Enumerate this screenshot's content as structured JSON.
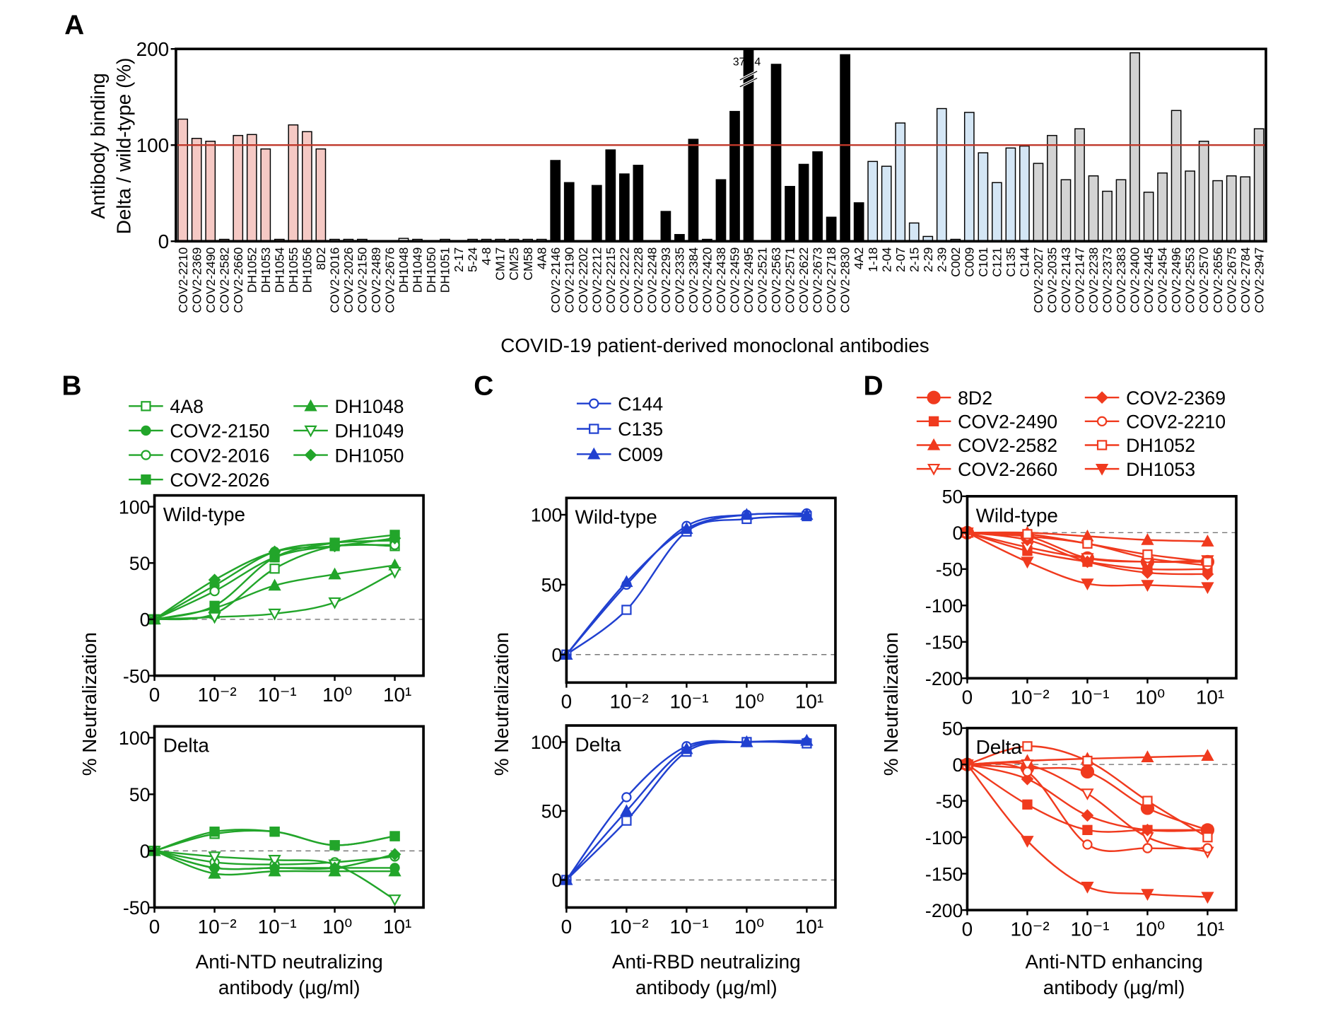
{
  "chart_data": [
    {
      "type": "bar",
      "panel": "A",
      "ylabel": [
        "Antibody binding",
        "Delta  / wild-type (%)"
      ],
      "xlabel": "COVID-19 patient-derived monoclonal antibodies",
      "ylim": [
        0,
        200
      ],
      "yticks": [
        0,
        100,
        200
      ],
      "reference_line": 100,
      "reference_color": "#c0392b",
      "groups": [
        {
          "fill": "#f5c9c4",
          "text_color": "#e8402a",
          "categories": [
            "COV2-2210",
            "COV2-2369",
            "COV2-2490",
            "COV2-2582",
            "COV2-2660",
            "DH1052",
            "DH1053",
            "DH1054",
            "DH1055",
            "DH1056",
            "8D2"
          ],
          "values": [
            127,
            107,
            104,
            2,
            110,
            111,
            96,
            2,
            121,
            114,
            96
          ]
        },
        {
          "fill": "#ffffff",
          "text_color": "#2aa52a",
          "categories": [
            "COV2-2016",
            "COV2-2026",
            "COV2-2150",
            "COV2-2489",
            "COV2-2676",
            "DH1048",
            "DH1049",
            "DH1050",
            "DH1051",
            "2-17",
            "5-24",
            "4-8",
            "CM17",
            "CM25",
            "CM58",
            "4A8"
          ],
          "values": [
            2,
            2,
            2,
            0,
            0,
            3,
            2,
            0,
            2,
            0,
            2,
            2,
            2,
            2,
            2,
            2
          ]
        },
        {
          "fill": "#000000",
          "text_color": "#000000",
          "categories": [
            "COV2-2146",
            "COV2-2190",
            "COV2-2202",
            "COV2-2212",
            "COV2-2215",
            "COV2-2222",
            "COV2-2228",
            "COV2-2248",
            "COV2-2293",
            "COV2-2335",
            "COV2-2384",
            "COV2-2420",
            "COV2-2438",
            "COV2-2459",
            "COV2-2495",
            "COV2-2521",
            "COV2-2563",
            "COV2-2571",
            "COV2-2622",
            "COV2-2673",
            "COV2-2718",
            "COV2-2830",
            "4A2"
          ],
          "values": [
            84,
            61,
            0,
            58,
            95,
            70,
            79,
            0,
            31,
            7,
            106,
            2,
            64,
            135,
            376.4,
            0,
            184,
            57,
            80,
            93,
            25,
            194,
            40
          ],
          "value_labels": [
            null,
            null,
            null,
            null,
            null,
            null,
            null,
            null,
            null,
            null,
            null,
            null,
            null,
            null,
            "376.4",
            null,
            null,
            null,
            null,
            null,
            null,
            null,
            null
          ]
        },
        {
          "fill": "#d4e6f5",
          "text_color": "#2a4fd0",
          "categories": [
            "1-18",
            "2-04",
            "2-07",
            "2-15",
            "2-29",
            "2-39",
            "C002",
            "C009",
            "C101",
            "C121",
            "C135",
            "C144"
          ],
          "values": [
            83,
            78,
            123,
            19,
            5,
            138,
            2,
            134,
            92,
            61,
            97,
            99
          ]
        },
        {
          "fill": "#d3d3d3",
          "text_color": "#000000",
          "categories": [
            "COV2-2027",
            "COV2-2035",
            "COV2-2143",
            "COV2-2147",
            "COV2-2238",
            "COV2-2373",
            "COV2-2383",
            "COV2-2400",
            "COV2-2445",
            "COV2-2454",
            "COV2-2496",
            "COV2-2553",
            "COV2-2570",
            "COV2-2656",
            "COV2-2675",
            "COV2-2784",
            "COV2-2947"
          ],
          "values": [
            81,
            110,
            64,
            117,
            68,
            52,
            64,
            196,
            51,
            71,
            136,
            73,
            104,
            63,
            68,
            67,
            117
          ]
        }
      ]
    },
    {
      "type": "line",
      "panel": "B",
      "ylabel": "% Neutralization",
      "xlabel": [
        "Anti-NTD neutralizing",
        "antibody (µg/ml)"
      ],
      "xscale": "log",
      "x": [
        0,
        0.01,
        0.1,
        1,
        10
      ],
      "xlim": [
        0,
        30
      ],
      "xticks": [
        0,
        {
          "value": 0.01,
          "label": "10⁻²"
        },
        {
          "value": 0.1,
          "label": "10⁻¹"
        },
        {
          "value": 1,
          "label": "10⁰"
        },
        {
          "value": 10,
          "label": "10¹"
        }
      ],
      "ylim": [
        -50,
        110
      ],
      "yticks": [
        -50,
        0,
        50,
        100
      ],
      "reference_line": 0,
      "subplots": [
        {
          "title": "Wild-type"
        },
        {
          "title": "Delta"
        }
      ],
      "series": [
        {
          "name": "4A8",
          "color": "#22a52a",
          "marker": "square-open",
          "values": [
            [
              0,
              5,
              45,
              65,
              65
            ],
            [
              0,
              15,
              17,
              5,
              13
            ]
          ]
        },
        {
          "name": "COV2-2150",
          "color": "#22a52a",
          "marker": "circle",
          "values": [
            [
              0,
              30,
              60,
              68,
              70
            ],
            [
              0,
              -15,
              -15,
              -15,
              -15
            ]
          ]
        },
        {
          "name": "COV2-2016",
          "color": "#22a52a",
          "marker": "circle-open",
          "values": [
            [
              0,
              25,
              55,
              65,
              66
            ],
            [
              0,
              -10,
              -12,
              -10,
              -5
            ]
          ]
        },
        {
          "name": "COV2-2026",
          "color": "#22a52a",
          "marker": "square",
          "values": [
            [
              0,
              12,
              55,
              68,
              75
            ],
            [
              0,
              17,
              17,
              5,
              13
            ]
          ]
        },
        {
          "name": "DH1048",
          "color": "#22a52a",
          "marker": "triangle",
          "values": [
            [
              0,
              10,
              30,
              40,
              48
            ],
            [
              0,
              -20,
              -18,
              -18,
              -18
            ]
          ]
        },
        {
          "name": "DH1049",
          "color": "#22a52a",
          "marker": "triangle-down-open",
          "values": [
            [
              0,
              2,
              5,
              15,
              42
            ],
            [
              0,
              -5,
              -8,
              -12,
              -43
            ]
          ]
        },
        {
          "name": "DH1050",
          "color": "#22a52a",
          "marker": "diamond",
          "values": [
            [
              0,
              35,
              60,
              65,
              72
            ],
            [
              0,
              -15,
              -15,
              -15,
              -3
            ]
          ]
        }
      ]
    },
    {
      "type": "line",
      "panel": "C",
      "ylabel": "% Neutralization",
      "xlabel": [
        "Anti-RBD neutralizing",
        "antibody (µg/ml)"
      ],
      "xscale": "log",
      "x": [
        0,
        0.01,
        0.1,
        1,
        10
      ],
      "xlim": [
        0,
        30
      ],
      "xticks": [
        0,
        {
          "value": 0.01,
          "label": "10⁻²"
        },
        {
          "value": 0.1,
          "label": "10⁻¹"
        },
        {
          "value": 1,
          "label": "10⁰"
        },
        {
          "value": 10,
          "label": "10¹"
        }
      ],
      "ylim": [
        -20,
        112
      ],
      "yticks": [
        0,
        50,
        100
      ],
      "reference_line": 0,
      "subplots": [
        {
          "title": "Wild-type"
        },
        {
          "title": "Delta"
        }
      ],
      "series": [
        {
          "name": "C144",
          "color": "#2040d0",
          "marker": "circle-open",
          "values": [
            [
              0,
              50,
              92,
              100,
              101
            ],
            [
              0,
              60,
              97,
              100,
              100
            ]
          ]
        },
        {
          "name": "C135",
          "color": "#2040d0",
          "marker": "square-open",
          "values": [
            [
              0,
              32,
              88,
              97,
              99
            ],
            [
              0,
              43,
              93,
              100,
              99
            ]
          ]
        },
        {
          "name": "C009",
          "color": "#2040d0",
          "marker": "triangle",
          "values": [
            [
              0,
              52,
              90,
              100,
              100
            ],
            [
              0,
              50,
              95,
              100,
              101
            ]
          ]
        }
      ]
    },
    {
      "type": "line",
      "panel": "D",
      "ylabel": "% Neutralization",
      "xlabel": [
        "Anti-NTD enhancing",
        "antibody (µg/ml)"
      ],
      "xscale": "log",
      "x": [
        0,
        0.01,
        0.1,
        1,
        10
      ],
      "xlim": [
        0,
        30
      ],
      "xticks": [
        0,
        {
          "value": 0.01,
          "label": "10⁻²"
        },
        {
          "value": 0.1,
          "label": "10⁻¹"
        },
        {
          "value": 1,
          "label": "10⁰"
        },
        {
          "value": 10,
          "label": "10¹"
        }
      ],
      "ylim": [
        -200,
        50
      ],
      "yticks": [
        -200,
        -150,
        -100,
        -50,
        0,
        50
      ],
      "reference_line": 0,
      "subplots": [
        {
          "title": "Wild-type"
        },
        {
          "title": "Delta"
        }
      ],
      "series": [
        {
          "name": "8D2",
          "color": "#f03a1e",
          "marker": "circle-large",
          "values": [
            [
              0,
              -5,
              -35,
              -40,
              -40
            ],
            [
              0,
              -5,
              -10,
              -60,
              -90
            ]
          ]
        },
        {
          "name": "COV2-2490",
          "color": "#f03a1e",
          "marker": "square",
          "values": [
            [
              0,
              -25,
              -40,
              -50,
              -50
            ],
            [
              0,
              -55,
              -90,
              -90,
              -90
            ]
          ]
        },
        {
          "name": "COV2-2582",
          "color": "#f03a1e",
          "marker": "triangle",
          "values": [
            [
              0,
              0,
              -5,
              -10,
              -12
            ],
            [
              0,
              5,
              8,
              10,
              12
            ]
          ]
        },
        {
          "name": "COV2-2660",
          "color": "#f03a1e",
          "marker": "triangle-down-open",
          "values": [
            [
              0,
              -20,
              -35,
              -40,
              -38
            ],
            [
              0,
              0,
              -40,
              -100,
              -120
            ]
          ]
        },
        {
          "name": "COV2-2369",
          "color": "#f03a1e",
          "marker": "diamond",
          "values": [
            [
              0,
              -10,
              -40,
              -55,
              -57
            ],
            [
              0,
              -20,
              -70,
              -90,
              -90
            ]
          ]
        },
        {
          "name": "COV2-2210",
          "color": "#f03a1e",
          "marker": "circle-open",
          "values": [
            [
              0,
              -5,
              -15,
              -35,
              -45
            ],
            [
              0,
              -10,
              -110,
              -115,
              -115
            ]
          ]
        },
        {
          "name": "DH1052",
          "color": "#f03a1e",
          "marker": "square-open",
          "values": [
            [
              0,
              -2,
              -15,
              -30,
              -40
            ],
            [
              0,
              25,
              5,
              -50,
              -100
            ]
          ]
        },
        {
          "name": "DH1053",
          "color": "#f03a1e",
          "marker": "triangle-down",
          "values": [
            [
              0,
              -40,
              -70,
              -72,
              -75
            ],
            [
              0,
              -105,
              -168,
              -178,
              -182
            ]
          ]
        }
      ]
    }
  ]
}
